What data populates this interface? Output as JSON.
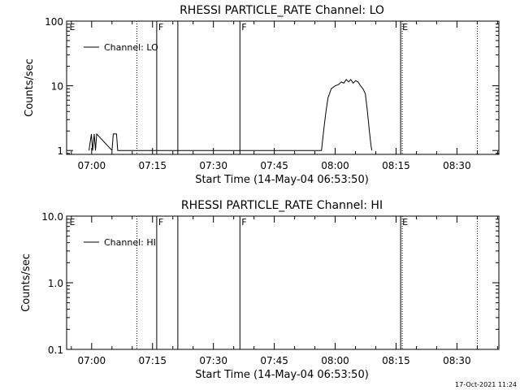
{
  "chart_data": [
    {
      "type": "line",
      "title": "RHESSI PARTICLE_RATE Channel: LO",
      "xlabel": "Start Time (14-May-04 06:53:50)",
      "ylabel": "Counts/sec",
      "x_tick_labels": [
        "07:00",
        "07:15",
        "07:30",
        "07:45",
        "08:00",
        "08:15",
        "08:30"
      ],
      "x_tick_minutes": [
        6.17,
        21.17,
        36.17,
        51.17,
        66.17,
        81.17,
        96.17
      ],
      "xlim_minutes": [
        0,
        106.5
      ],
      "y_scale": "log",
      "ylim": [
        0.87,
        100
      ],
      "y_tick_labels": [
        "1",
        "10",
        "100"
      ],
      "y_tick_values": [
        1,
        10,
        100
      ],
      "legend": {
        "label": "Channel: LO",
        "placement": "top-left"
      },
      "series": [
        {
          "name": "Channel: LO",
          "x": [
            5.5,
            6.1,
            6.4,
            6.8,
            7.1,
            7.4,
            11.2,
            11.5,
            11.8,
            12.3,
            12.6,
            62.8,
            63.1,
            63.5,
            63.9,
            64.4,
            65.2,
            66.2,
            67.0,
            67.7,
            68.3,
            68.9,
            69.5,
            70.0,
            70.6,
            71.2,
            71.8,
            72.4,
            73.0,
            73.6,
            74.1,
            74.6,
            75.0,
            75.2
          ],
          "y": [
            1,
            1.8,
            1,
            1.8,
            1,
            1.8,
            1,
            1.8,
            1.8,
            1.8,
            1,
            1,
            1.5,
            2.5,
            4,
            6.5,
            9,
            10,
            10.5,
            11.5,
            11,
            12.5,
            11.5,
            12.5,
            11,
            12,
            11.5,
            10,
            9,
            7.5,
            4,
            2,
            1.2,
            1
          ]
        }
      ],
      "annotations": [
        {
          "label": "E",
          "x_minutes": 0.3,
          "line": "none"
        },
        {
          "label": "",
          "x_minutes": 17.3,
          "line": "dotted"
        },
        {
          "label": "F",
          "x_minutes": 22.2,
          "line": "solid"
        },
        {
          "label": "",
          "x_minutes": 27.4,
          "line": "solid"
        },
        {
          "label": "F",
          "x_minutes": 42.7,
          "line": "solid"
        },
        {
          "label": "E",
          "x_minutes": 82.3,
          "line": "solid"
        },
        {
          "label": "",
          "x_minutes": 82.7,
          "line": "dotted"
        },
        {
          "label": "",
          "x_minutes": 101.2,
          "line": "dotted"
        }
      ]
    },
    {
      "type": "line",
      "title": "RHESSI PARTICLE_RATE Channel: HI",
      "xlabel": "Start Time (14-May-04 06:53:50)",
      "ylabel": "Counts/sec",
      "x_tick_labels": [
        "07:00",
        "07:15",
        "07:30",
        "07:45",
        "08:00",
        "08:15",
        "08:30"
      ],
      "x_tick_minutes": [
        6.17,
        21.17,
        36.17,
        51.17,
        66.17,
        81.17,
        96.17
      ],
      "xlim_minutes": [
        0,
        106.5
      ],
      "y_scale": "log",
      "ylim": [
        0.1,
        10
      ],
      "y_tick_labels": [
        "0.1",
        "1.0",
        "10.0"
      ],
      "y_tick_values": [
        0.1,
        1,
        10
      ],
      "legend": {
        "label": "Channel: HI",
        "placement": "top-left"
      },
      "series": [
        {
          "name": "Channel: HI",
          "x": [],
          "y": []
        }
      ],
      "annotations": [
        {
          "label": "E",
          "x_minutes": 0.3,
          "line": "none"
        },
        {
          "label": "",
          "x_minutes": 17.3,
          "line": "dotted"
        },
        {
          "label": "F",
          "x_minutes": 22.2,
          "line": "solid"
        },
        {
          "label": "",
          "x_minutes": 27.4,
          "line": "solid"
        },
        {
          "label": "F",
          "x_minutes": 42.7,
          "line": "solid"
        },
        {
          "label": "E",
          "x_minutes": 82.3,
          "line": "solid"
        },
        {
          "label": "",
          "x_minutes": 82.7,
          "line": "dotted"
        },
        {
          "label": "",
          "x_minutes": 101.2,
          "line": "dotted"
        }
      ]
    }
  ],
  "footer": {
    "timestamp": "17-Oct-2021 11:24"
  }
}
